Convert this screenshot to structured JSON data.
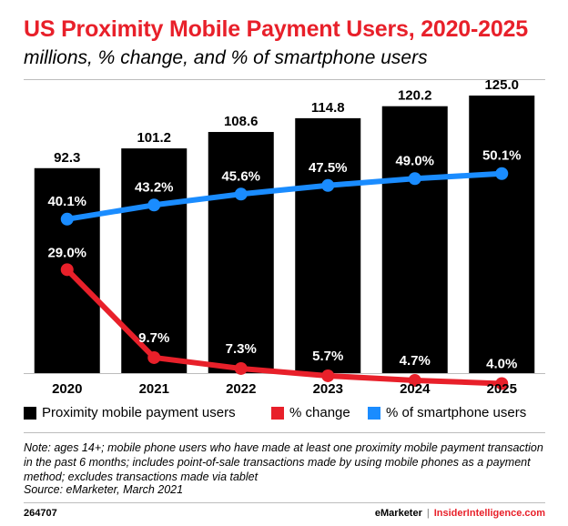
{
  "header": {
    "title": "US Proximity Mobile Payment Users, 2020-2025",
    "subtitle": "millions, % change, and % of smartphone users"
  },
  "chart_data": {
    "type": "bar",
    "categories": [
      "2020",
      "2021",
      "2022",
      "2023",
      "2024",
      "2025"
    ],
    "series": [
      {
        "name": "Proximity mobile payment users",
        "type": "bar",
        "color": "#000000",
        "values": [
          92.3,
          101.2,
          108.6,
          114.8,
          120.2,
          125.0
        ],
        "labels": [
          "92.3",
          "101.2",
          "108.6",
          "114.8",
          "120.2",
          "125.0"
        ]
      },
      {
        "name": "% change",
        "type": "line",
        "color": "#e8202a",
        "values": [
          29.0,
          9.7,
          7.3,
          5.7,
          4.7,
          4.0
        ],
        "labels": [
          "29.0%",
          "9.7%",
          "7.3%",
          "5.7%",
          "4.7%",
          "4.0%"
        ]
      },
      {
        "name": "% of smartphone users",
        "type": "line",
        "color": "#1a8cff",
        "values": [
          40.1,
          43.2,
          45.6,
          47.5,
          49.0,
          50.1
        ],
        "labels": [
          "40.1%",
          "43.2%",
          "45.6%",
          "47.5%",
          "49.0%",
          "50.1%"
        ]
      }
    ],
    "legend_position": "bottom",
    "grid": false
  },
  "note": "Note: ages 14+; mobile phone users who have made at least one proximity mobile payment transaction in the past 6 months; includes point-of-sale transactions made by using mobile phones as a payment method; excludes transactions made via tablet",
  "source": "Source: eMarketer, March 2021",
  "footer": {
    "chart_id": "264707",
    "brand_left": "eMarketer",
    "separator": "|",
    "brand_right": "InsiderIntelligence.com"
  }
}
